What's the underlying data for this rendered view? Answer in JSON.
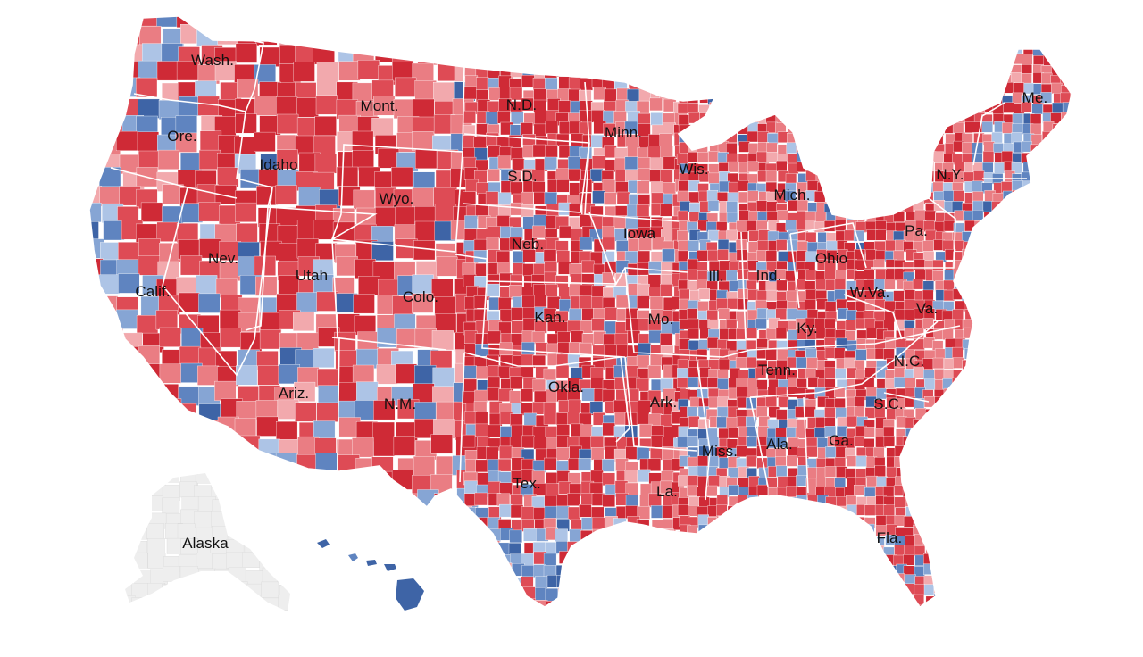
{
  "map": {
    "colors": {
      "strong_rep": "#cf2a36",
      "rep": "#de4b55",
      "lean_rep": "#ea7d83",
      "light_rep": "#f2a9ad",
      "strong_dem": "#3e64a6",
      "dem": "#5f84c0",
      "lean_dem": "#86a5d4",
      "light_dem": "#adc4e6",
      "no_data": "#eeeeee",
      "border": "#ffffff"
    },
    "state_labels": [
      {
        "key": "wa",
        "text": "Wash."
      },
      {
        "key": "or",
        "text": "Ore."
      },
      {
        "key": "ca",
        "text": "Calif."
      },
      {
        "key": "nv",
        "text": "Nev."
      },
      {
        "key": "id",
        "text": "Idaho"
      },
      {
        "key": "mt",
        "text": "Mont."
      },
      {
        "key": "wy",
        "text": "Wyo."
      },
      {
        "key": "ut",
        "text": "Utah"
      },
      {
        "key": "az",
        "text": "Ariz."
      },
      {
        "key": "co",
        "text": "Colo."
      },
      {
        "key": "nm",
        "text": "N.M."
      },
      {
        "key": "nd",
        "text": "N.D."
      },
      {
        "key": "sd",
        "text": "S.D."
      },
      {
        "key": "ne",
        "text": "Neb."
      },
      {
        "key": "ks",
        "text": "Kan."
      },
      {
        "key": "ok",
        "text": "Okla."
      },
      {
        "key": "tx",
        "text": "Tex."
      },
      {
        "key": "mn",
        "text": "Minn."
      },
      {
        "key": "ia",
        "text": "Iowa"
      },
      {
        "key": "mo",
        "text": "Mo."
      },
      {
        "key": "ar",
        "text": "Ark."
      },
      {
        "key": "la",
        "text": "La."
      },
      {
        "key": "wi",
        "text": "Wis."
      },
      {
        "key": "il",
        "text": "Ill."
      },
      {
        "key": "mi",
        "text": "Mich."
      },
      {
        "key": "in",
        "text": "Ind."
      },
      {
        "key": "oh",
        "text": "Ohio"
      },
      {
        "key": "ky",
        "text": "Ky."
      },
      {
        "key": "tn",
        "text": "Tenn."
      },
      {
        "key": "ms",
        "text": "Miss."
      },
      {
        "key": "al",
        "text": "Ala."
      },
      {
        "key": "ga",
        "text": "Ga."
      },
      {
        "key": "fl",
        "text": "Fla."
      },
      {
        "key": "sc",
        "text": "S.C."
      },
      {
        "key": "nc",
        "text": "N.C."
      },
      {
        "key": "va",
        "text": "Va."
      },
      {
        "key": "wv",
        "text": "W.Va."
      },
      {
        "key": "pa",
        "text": "Pa."
      },
      {
        "key": "ny",
        "text": "N.Y."
      },
      {
        "key": "me",
        "text": "Me."
      },
      {
        "key": "ak",
        "text": "Alaska"
      }
    ]
  }
}
